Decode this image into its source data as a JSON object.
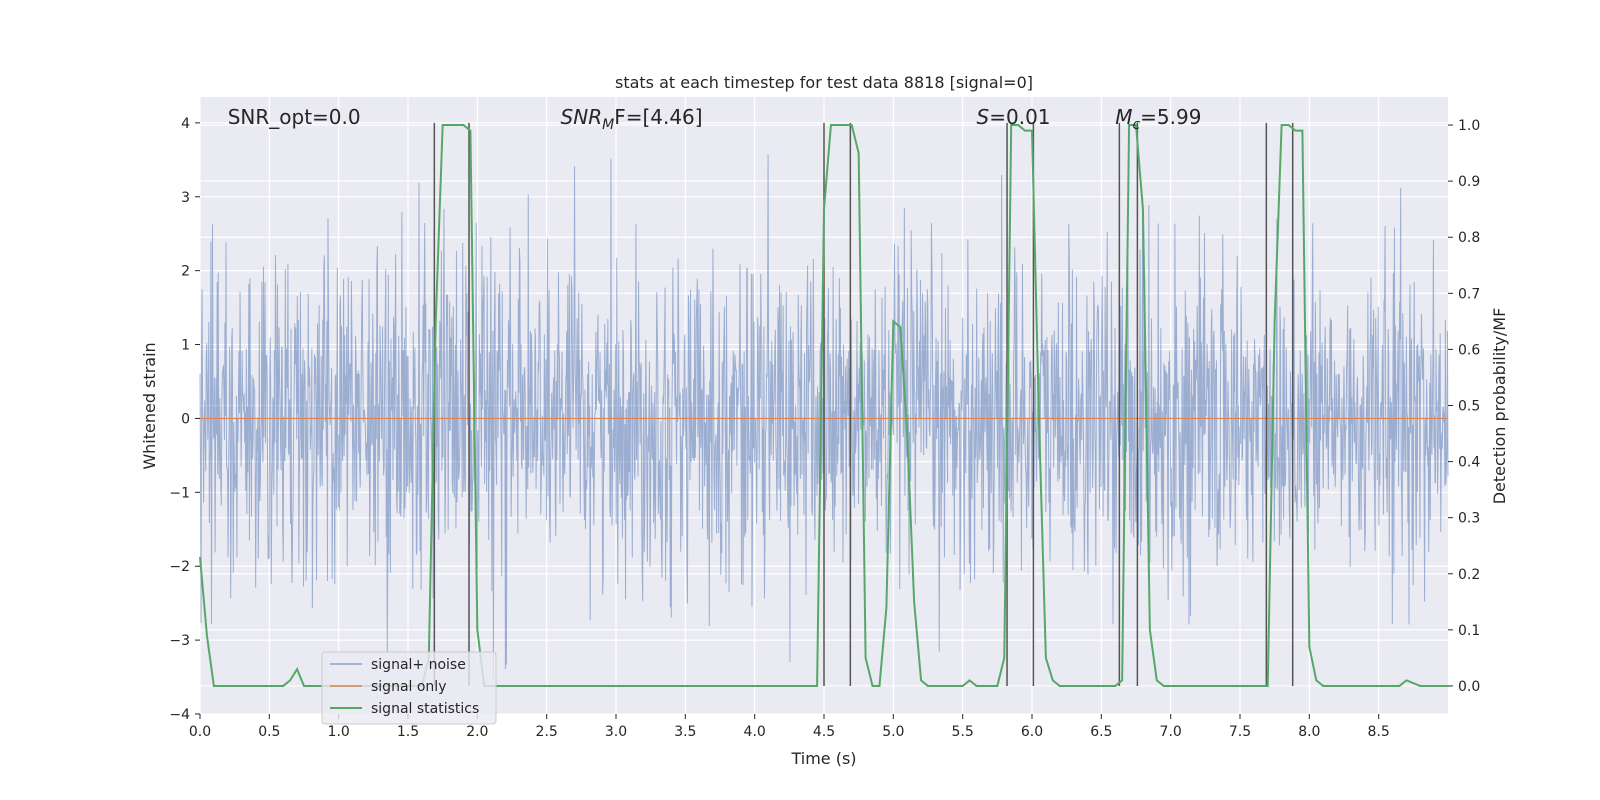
{
  "chart_data": {
    "type": "line",
    "title": "stats at each timestep for test data 8818 [signal=0]",
    "xlabel": "Time (s)",
    "ylabel_left": "Whitened strain",
    "ylabel_right": "Detection probability/MF",
    "xlim": [
      0.0,
      9.0
    ],
    "ylim_left": [
      -4.0,
      4.35
    ],
    "ylim_right": [
      -0.05,
      1.05
    ],
    "xticks": [
      "0.0",
      "0.5",
      "1.0",
      "1.5",
      "2.0",
      "2.5",
      "3.0",
      "3.5",
      "4.0",
      "4.5",
      "5.0",
      "5.5",
      "6.0",
      "6.5",
      "7.0",
      "7.5",
      "8.0",
      "8.5"
    ],
    "xtick_values": [
      0.0,
      0.5,
      1.0,
      1.5,
      2.0,
      2.5,
      3.0,
      3.5,
      4.0,
      4.5,
      5.0,
      5.5,
      6.0,
      6.5,
      7.0,
      7.5,
      8.0,
      8.5
    ],
    "yticks_left": [
      "4",
      "3",
      "2",
      "1",
      "0",
      "−1",
      "−2",
      "−3",
      "−4"
    ],
    "ytick_values_left": [
      4,
      3,
      2,
      1,
      0,
      -1,
      -2,
      -3,
      -4
    ],
    "yticks_right": [
      "1.0",
      "0.9",
      "0.8",
      "0.7",
      "0.6",
      "0.5",
      "0.4",
      "0.3",
      "0.2",
      "0.1",
      "0.0"
    ],
    "ytick_values_right": [
      1.0,
      0.9,
      0.8,
      0.7,
      0.6,
      0.5,
      0.4,
      0.3,
      0.2,
      0.1,
      0.0
    ],
    "annotations": [
      {
        "id": "snr-opt",
        "x_data": 0.2,
        "text": "SNR_opt=0.0",
        "style": "plain"
      },
      {
        "id": "snr-mf",
        "x_data": 2.6,
        "base": "SNR",
        "sub": "M",
        "tail": "F=[4.46]",
        "style": "sub"
      },
      {
        "id": "s-stat",
        "x_data": 5.6,
        "base": "S",
        "sub": "",
        "tail": "=0.01",
        "style": "italic"
      },
      {
        "id": "mc",
        "x_data": 6.6,
        "base": "M",
        "sub": "c",
        "tail": "=5.99",
        "style": "sub"
      }
    ],
    "noise": {
      "name": "signal+ noise",
      "amplitude_sigma": 1.0,
      "color": "#4c72b0"
    },
    "signal": {
      "name": "signal only",
      "value": 0.0,
      "color": "#dd8452"
    },
    "statistics": {
      "name": "signal statistics",
      "color": "#55a868",
      "x": [
        0.0,
        0.05,
        0.1,
        0.2,
        0.3,
        0.4,
        0.5,
        0.6,
        0.65,
        0.7,
        0.75,
        0.8,
        0.9,
        1.0,
        1.1,
        1.2,
        1.3,
        1.4,
        1.5,
        1.6,
        1.65,
        1.7,
        1.75,
        1.8,
        1.85,
        1.9,
        1.95,
        2.0,
        2.05,
        2.1,
        2.2,
        2.4,
        2.5,
        2.6,
        3.0,
        4.0,
        4.4,
        4.45,
        4.5,
        4.55,
        4.6,
        4.7,
        4.75,
        4.8,
        4.85,
        4.9,
        4.95,
        5.0,
        5.05,
        5.1,
        5.15,
        5.2,
        5.25,
        5.3,
        5.4,
        5.5,
        5.55,
        5.6,
        5.7,
        5.75,
        5.8,
        5.85,
        5.9,
        5.95,
        6.0,
        6.05,
        6.1,
        6.15,
        6.2,
        6.3,
        6.4,
        6.5,
        6.6,
        6.65,
        6.7,
        6.75,
        6.8,
        6.85,
        6.9,
        6.95,
        7.0,
        7.2,
        7.4,
        7.6,
        7.65,
        7.7,
        7.75,
        7.8,
        7.85,
        7.9,
        7.95,
        8.0,
        8.05,
        8.1,
        8.2,
        8.4,
        8.6,
        8.65,
        8.7,
        8.8,
        9.0
      ],
      "y": [
        0.23,
        0.09,
        0.0,
        0.0,
        0.0,
        0.0,
        0.0,
        0.0,
        0.01,
        0.03,
        0.0,
        0.0,
        0.0,
        0.0,
        0.0,
        0.0,
        0.0,
        0.0,
        0.0,
        0.0,
        0.05,
        0.65,
        1.0,
        1.0,
        1.0,
        1.0,
        0.99,
        0.1,
        0.0,
        0.0,
        0.0,
        0.0,
        0.0,
        0.0,
        0.0,
        0.0,
        0.0,
        0.0,
        0.85,
        1.0,
        1.0,
        1.0,
        0.95,
        0.05,
        0.0,
        0.0,
        0.14,
        0.65,
        0.64,
        0.45,
        0.15,
        0.01,
        0.0,
        0.0,
        0.0,
        0.0,
        0.01,
        0.0,
        0.0,
        0.0,
        0.05,
        1.0,
        1.0,
        0.99,
        0.99,
        0.48,
        0.05,
        0.01,
        0.0,
        0.0,
        0.0,
        0.0,
        0.0,
        0.01,
        1.0,
        1.0,
        0.85,
        0.1,
        0.01,
        0.0,
        0.0,
        0.0,
        0.0,
        0.0,
        0.0,
        0.0,
        0.65,
        1.0,
        1.0,
        0.99,
        0.99,
        0.07,
        0.01,
        0.0,
        0.0,
        0.0,
        0.0,
        0.0,
        0.01,
        0.0,
        0.0
      ]
    },
    "markers": {
      "color": "#555555",
      "x": [
        1.69,
        1.94,
        4.5,
        4.69,
        5.82,
        6.01,
        6.63,
        6.76,
        7.69,
        7.88
      ]
    },
    "legend": {
      "placement": "lower-left",
      "items": [
        "signal+ noise",
        "signal only",
        "signal statistics"
      ]
    }
  }
}
